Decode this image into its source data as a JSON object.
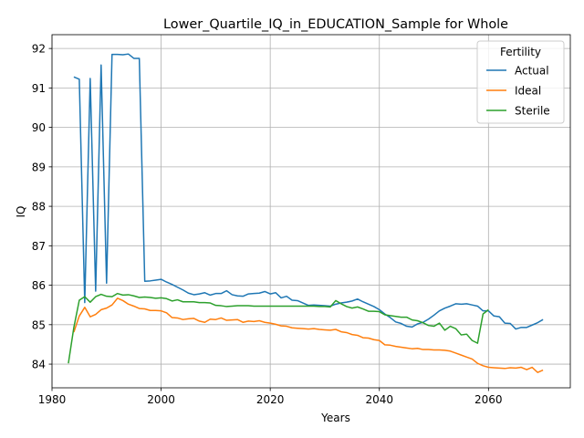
{
  "chart_data": {
    "type": "line",
    "title": "Lower_Quartile_IQ_in_EDUCATION_Sample for Whole",
    "xlabel": "Years",
    "ylabel": "IQ",
    "xlim": [
      1980,
      2075
    ],
    "ylim": [
      83.4,
      92.35
    ],
    "xticks": [
      1980,
      2000,
      2020,
      2040,
      2060
    ],
    "yticks": [
      84,
      85,
      86,
      87,
      88,
      89,
      90,
      91,
      92
    ],
    "grid": true,
    "legend": {
      "title": "Fertility",
      "placement": "top-right"
    },
    "series": [
      {
        "name": "Actual",
        "color": "#1f77b4",
        "points": [
          [
            1984,
            91.28
          ],
          [
            1985,
            91.22
          ],
          [
            1986,
            85.56
          ],
          [
            1987,
            91.24
          ],
          [
            1988,
            85.85
          ],
          [
            1989,
            91.58
          ],
          [
            1990,
            86.05
          ],
          [
            1991,
            91.85
          ],
          [
            1992,
            91.85
          ],
          [
            1993,
            91.84
          ],
          [
            1994,
            91.86
          ],
          [
            1995,
            91.75
          ],
          [
            1996,
            91.75
          ],
          [
            1997,
            86.1
          ],
          [
            1998,
            86.11
          ],
          [
            1999,
            86.13
          ],
          [
            2000,
            86.15
          ],
          [
            2001,
            86.08
          ],
          [
            2002,
            86.02
          ],
          [
            2003,
            85.95
          ],
          [
            2004,
            85.88
          ],
          [
            2005,
            85.8
          ],
          [
            2006,
            85.76
          ],
          [
            2007,
            85.78
          ],
          [
            2008,
            85.81
          ],
          [
            2009,
            85.75
          ],
          [
            2010,
            85.79
          ],
          [
            2011,
            85.79
          ],
          [
            2012,
            85.86
          ],
          [
            2013,
            85.76
          ],
          [
            2014,
            85.73
          ],
          [
            2015,
            85.72
          ],
          [
            2016,
            85.78
          ],
          [
            2017,
            85.79
          ],
          [
            2018,
            85.8
          ],
          [
            2019,
            85.84
          ],
          [
            2020,
            85.78
          ],
          [
            2021,
            85.81
          ],
          [
            2022,
            85.68
          ],
          [
            2023,
            85.72
          ],
          [
            2024,
            85.62
          ],
          [
            2025,
            85.61
          ],
          [
            2026,
            85.55
          ],
          [
            2027,
            85.49
          ],
          [
            2028,
            85.5
          ],
          [
            2029,
            85.49
          ],
          [
            2030,
            85.48
          ],
          [
            2031,
            85.47
          ],
          [
            2032,
            85.52
          ],
          [
            2033,
            85.55
          ],
          [
            2034,
            85.57
          ],
          [
            2035,
            85.6
          ],
          [
            2036,
            85.65
          ],
          [
            2037,
            85.58
          ],
          [
            2038,
            85.52
          ],
          [
            2039,
            85.46
          ],
          [
            2040,
            85.38
          ],
          [
            2041,
            85.27
          ],
          [
            2042,
            85.18
          ],
          [
            2043,
            85.07
          ],
          [
            2044,
            85.03
          ],
          [
            2045,
            84.96
          ],
          [
            2046,
            84.94
          ],
          [
            2047,
            85.02
          ],
          [
            2048,
            85.06
          ],
          [
            2049,
            85.14
          ],
          [
            2050,
            85.24
          ],
          [
            2051,
            85.35
          ],
          [
            2052,
            85.42
          ],
          [
            2053,
            85.47
          ],
          [
            2054,
            85.53
          ],
          [
            2055,
            85.52
          ],
          [
            2056,
            85.53
          ],
          [
            2057,
            85.5
          ],
          [
            2058,
            85.47
          ],
          [
            2059,
            85.35
          ],
          [
            2060,
            85.35
          ],
          [
            2061,
            85.22
          ],
          [
            2062,
            85.2
          ],
          [
            2063,
            85.04
          ],
          [
            2064,
            85.03
          ],
          [
            2065,
            84.89
          ],
          [
            2066,
            84.93
          ],
          [
            2067,
            84.93
          ],
          [
            2068,
            84.99
          ],
          [
            2069,
            85.05
          ],
          [
            2070,
            85.13
          ]
        ]
      },
      {
        "name": "Ideal",
        "color": "#ff7f0e",
        "points": [
          [
            1984,
            84.81
          ],
          [
            1985,
            85.22
          ],
          [
            1986,
            85.44
          ],
          [
            1987,
            85.2
          ],
          [
            1988,
            85.26
          ],
          [
            1989,
            85.38
          ],
          [
            1990,
            85.42
          ],
          [
            1991,
            85.5
          ],
          [
            1992,
            85.67
          ],
          [
            1993,
            85.61
          ],
          [
            1994,
            85.52
          ],
          [
            1995,
            85.47
          ],
          [
            1996,
            85.41
          ],
          [
            1997,
            85.4
          ],
          [
            1998,
            85.36
          ],
          [
            1999,
            85.36
          ],
          [
            2000,
            85.35
          ],
          [
            2001,
            85.3
          ],
          [
            2002,
            85.18
          ],
          [
            2003,
            85.17
          ],
          [
            2004,
            85.13
          ],
          [
            2005,
            85.15
          ],
          [
            2006,
            85.16
          ],
          [
            2007,
            85.09
          ],
          [
            2008,
            85.06
          ],
          [
            2009,
            85.14
          ],
          [
            2010,
            85.13
          ],
          [
            2011,
            85.17
          ],
          [
            2012,
            85.11
          ],
          [
            2013,
            85.12
          ],
          [
            2014,
            85.13
          ],
          [
            2015,
            85.06
          ],
          [
            2016,
            85.09
          ],
          [
            2017,
            85.08
          ],
          [
            2018,
            85.1
          ],
          [
            2019,
            85.06
          ],
          [
            2020,
            85.04
          ],
          [
            2021,
            85.01
          ],
          [
            2022,
            84.97
          ],
          [
            2023,
            84.96
          ],
          [
            2024,
            84.92
          ],
          [
            2025,
            84.91
          ],
          [
            2026,
            84.9
          ],
          [
            2027,
            84.89
          ],
          [
            2028,
            84.9
          ],
          [
            2029,
            84.88
          ],
          [
            2030,
            84.87
          ],
          [
            2031,
            84.86
          ],
          [
            2032,
            84.88
          ],
          [
            2033,
            84.82
          ],
          [
            2034,
            84.8
          ],
          [
            2035,
            84.75
          ],
          [
            2036,
            84.73
          ],
          [
            2037,
            84.67
          ],
          [
            2038,
            84.66
          ],
          [
            2039,
            84.62
          ],
          [
            2040,
            84.6
          ],
          [
            2041,
            84.49
          ],
          [
            2042,
            84.48
          ],
          [
            2043,
            84.45
          ],
          [
            2044,
            84.43
          ],
          [
            2045,
            84.41
          ],
          [
            2046,
            84.39
          ],
          [
            2047,
            84.4
          ],
          [
            2048,
            84.37
          ],
          [
            2049,
            84.37
          ],
          [
            2050,
            84.36
          ],
          [
            2051,
            84.36
          ],
          [
            2052,
            84.35
          ],
          [
            2053,
            84.33
          ],
          [
            2054,
            84.28
          ],
          [
            2055,
            84.23
          ],
          [
            2056,
            84.18
          ],
          [
            2057,
            84.13
          ],
          [
            2058,
            84.02
          ],
          [
            2059,
            83.96
          ],
          [
            2060,
            83.92
          ],
          [
            2061,
            83.91
          ],
          [
            2062,
            83.9
          ],
          [
            2063,
            83.89
          ],
          [
            2064,
            83.91
          ],
          [
            2065,
            83.9
          ],
          [
            2066,
            83.92
          ],
          [
            2067,
            83.86
          ],
          [
            2068,
            83.92
          ],
          [
            2069,
            83.79
          ],
          [
            2070,
            83.85
          ]
        ]
      },
      {
        "name": "Sterile",
        "color": "#2ca02c",
        "points": [
          [
            1983,
            84.02
          ],
          [
            1984,
            84.93
          ],
          [
            1985,
            85.62
          ],
          [
            1986,
            85.71
          ],
          [
            1987,
            85.57
          ],
          [
            1988,
            85.71
          ],
          [
            1989,
            85.77
          ],
          [
            1990,
            85.72
          ],
          [
            1991,
            85.71
          ],
          [
            1992,
            85.79
          ],
          [
            1993,
            85.75
          ],
          [
            1994,
            85.76
          ],
          [
            1995,
            85.73
          ],
          [
            1996,
            85.69
          ],
          [
            1997,
            85.7
          ],
          [
            1998,
            85.69
          ],
          [
            1999,
            85.67
          ],
          [
            2000,
            85.68
          ],
          [
            2001,
            85.66
          ],
          [
            2002,
            85.6
          ],
          [
            2003,
            85.63
          ],
          [
            2004,
            85.58
          ],
          [
            2005,
            85.58
          ],
          [
            2006,
            85.58
          ],
          [
            2007,
            85.56
          ],
          [
            2008,
            85.56
          ],
          [
            2009,
            85.55
          ],
          [
            2010,
            85.49
          ],
          [
            2011,
            85.48
          ],
          [
            2012,
            85.46
          ],
          [
            2013,
            85.47
          ],
          [
            2014,
            85.48
          ],
          [
            2015,
            85.48
          ],
          [
            2016,
            85.48
          ],
          [
            2017,
            85.47
          ],
          [
            2018,
            85.47
          ],
          [
            2019,
            85.47
          ],
          [
            2020,
            85.47
          ],
          [
            2021,
            85.47
          ],
          [
            2022,
            85.47
          ],
          [
            2023,
            85.47
          ],
          [
            2024,
            85.47
          ],
          [
            2025,
            85.47
          ],
          [
            2026,
            85.47
          ],
          [
            2027,
            85.47
          ],
          [
            2028,
            85.47
          ],
          [
            2029,
            85.46
          ],
          [
            2030,
            85.46
          ],
          [
            2031,
            85.45
          ],
          [
            2032,
            85.61
          ],
          [
            2033,
            85.53
          ],
          [
            2034,
            85.46
          ],
          [
            2035,
            85.42
          ],
          [
            2036,
            85.45
          ],
          [
            2037,
            85.4
          ],
          [
            2038,
            85.34
          ],
          [
            2039,
            85.34
          ],
          [
            2040,
            85.33
          ],
          [
            2041,
            85.25
          ],
          [
            2042,
            85.23
          ],
          [
            2043,
            85.21
          ],
          [
            2044,
            85.19
          ],
          [
            2045,
            85.19
          ],
          [
            2046,
            85.12
          ],
          [
            2047,
            85.1
          ],
          [
            2048,
            85.05
          ],
          [
            2049,
            84.98
          ],
          [
            2050,
            84.96
          ],
          [
            2051,
            85.04
          ],
          [
            2052,
            84.86
          ],
          [
            2053,
            84.96
          ],
          [
            2054,
            84.9
          ],
          [
            2055,
            84.74
          ],
          [
            2056,
            84.76
          ],
          [
            2057,
            84.6
          ],
          [
            2058,
            84.53
          ],
          [
            2059,
            85.27
          ],
          [
            2060,
            85.38
          ]
        ]
      }
    ]
  }
}
